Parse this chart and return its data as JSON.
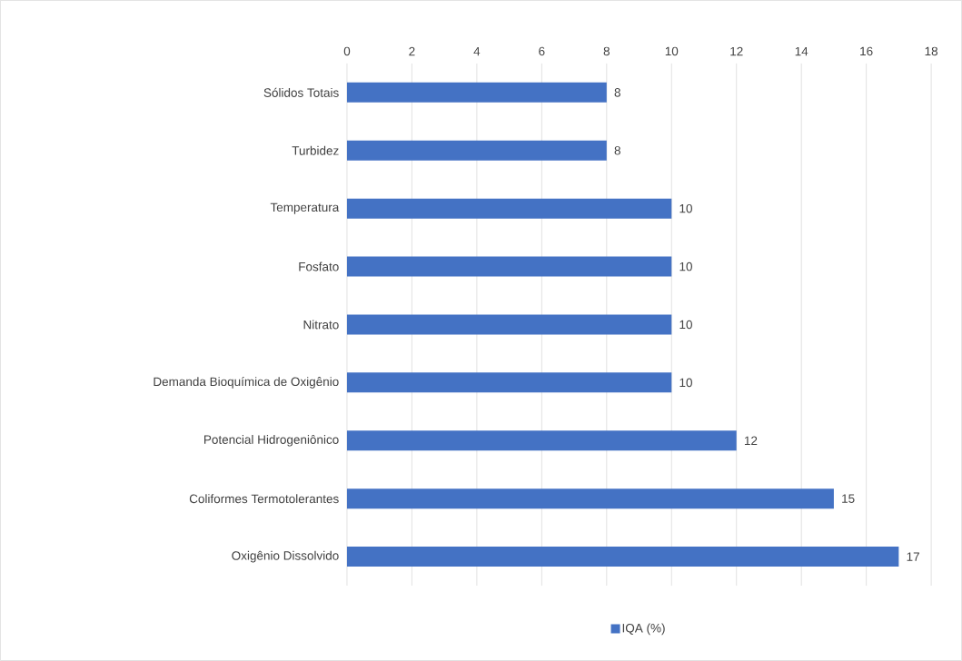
{
  "chart_data": {
    "type": "bar",
    "orientation": "horizontal",
    "categories": [
      "Sólidos Totais",
      "Turbidez",
      "Temperatura",
      "Fosfato",
      "Nitrato",
      "Demanda Bioquímica de Oxigênio",
      "Potencial Hidrogeniônico",
      "Coliformes Termotolerantes",
      "Oxigênio Dissolvido"
    ],
    "series": [
      {
        "name": "IQA (%)",
        "color": "#4472c4",
        "values": [
          8,
          8,
          10,
          10,
          10,
          10,
          12,
          15,
          17
        ]
      }
    ],
    "xlim": [
      0,
      18
    ],
    "xticks": [
      0,
      2,
      4,
      6,
      8,
      10,
      12,
      14,
      16,
      18
    ],
    "grid": "x",
    "legend": "bottom",
    "data_labels": true
  }
}
